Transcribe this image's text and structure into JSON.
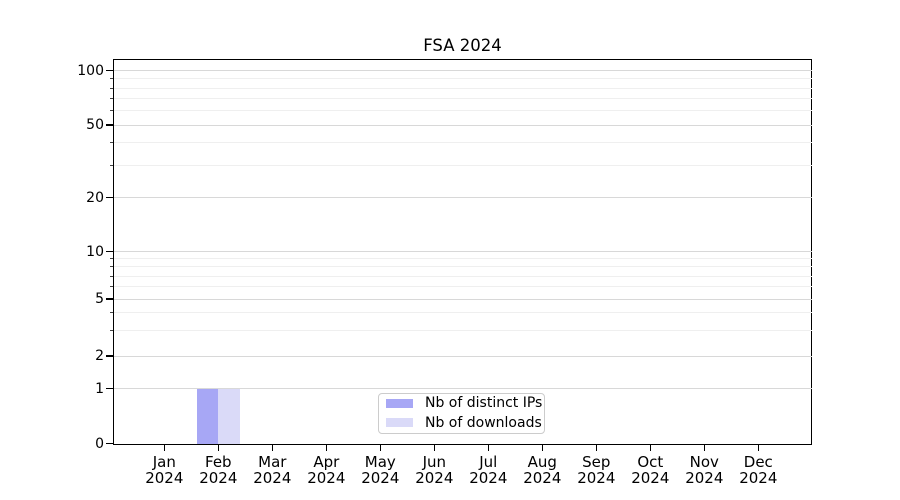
{
  "chart_data": {
    "type": "bar",
    "title": "FSA 2024",
    "xlabel": "",
    "ylabel": "",
    "year_label": "2024",
    "categories": [
      "Jan",
      "Feb",
      "Mar",
      "Apr",
      "May",
      "Jun",
      "Jul",
      "Aug",
      "Sep",
      "Oct",
      "Nov",
      "Dec"
    ],
    "series": [
      {
        "name": "Nb of distinct IPs",
        "color": "#a7a7f5",
        "values": [
          0,
          1,
          0,
          0,
          0,
          0,
          0,
          0,
          0,
          0,
          0,
          0
        ]
      },
      {
        "name": "Nb of downloads",
        "color": "#dadaf8",
        "values": [
          0,
          1,
          0,
          0,
          0,
          0,
          0,
          0,
          0,
          0,
          0,
          0
        ]
      }
    ],
    "y_scale": "symlog",
    "y_ticks": [
      0,
      1,
      2,
      5,
      10,
      20,
      50,
      100
    ],
    "y_minor_ticks": [
      3,
      4,
      6,
      7,
      8,
      9,
      30,
      40,
      60,
      70,
      80,
      90
    ],
    "ylim": [
      0,
      113
    ],
    "grid": "horizontal-major-and-minor",
    "legend_position": "lower center (inside axes)"
  },
  "colors": {
    "background": "#ffffff",
    "spine": "#000000",
    "text": "#000000",
    "grid_major": "#d8d8d8",
    "grid_minor": "#efefef",
    "legend_border": "#cccccc",
    "bar_distinct_ips": "#a7a7f5",
    "bar_downloads": "#dadaf8"
  }
}
